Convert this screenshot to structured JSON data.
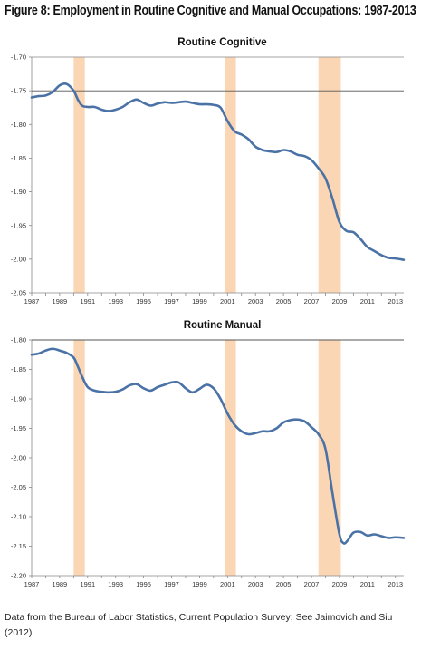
{
  "figure_title": "Figure 8: Employment in Routine Cognitive and Manual Occupations: 1987-2013",
  "caption": "Data from the Bureau of Labor Statistics, Current Population Survey; See Jaimovich and Siu (2012).",
  "colors": {
    "line": "#4a72a6",
    "recession": "#fbd6b4",
    "axis": "#888888",
    "zero_line": "#555555"
  },
  "chart_data": [
    {
      "type": "line",
      "title": "Routine Cognitive",
      "xlim": [
        1987,
        2013.6
      ],
      "ylim": [
        -2.05,
        -1.7
      ],
      "x_ticks": [
        "1987",
        "1989",
        "1991",
        "1993",
        "1995",
        "1997",
        "1999",
        "2001",
        "2003",
        "2005",
        "2007",
        "2009",
        "2011",
        "2013"
      ],
      "y_ticks": [
        "-1.70",
        "-1.75",
        "-1.80",
        "-1.85",
        "-1.90",
        "-1.95",
        "-2.00",
        "-2.05"
      ],
      "reference_line": -1.75,
      "recessions": [
        [
          1990.0,
          1990.8
        ],
        [
          2000.8,
          2001.6
        ],
        [
          2007.5,
          2009.1
        ]
      ],
      "series": [
        {
          "x": [
            1987,
            1987.5,
            1988,
            1988.5,
            1989,
            1989.5,
            1990,
            1990.3,
            1990.6,
            1991,
            1991.5,
            1992,
            1992.5,
            1993,
            1993.5,
            1994,
            1994.5,
            1995,
            1995.5,
            1996,
            1996.5,
            1997,
            1997.5,
            1998,
            1998.5,
            1999,
            1999.5,
            2000,
            2000.5,
            2001,
            2001.5,
            2002,
            2002.5,
            2003,
            2003.5,
            2004,
            2004.5,
            2005,
            2005.5,
            2006,
            2006.5,
            2007,
            2007.5,
            2008,
            2008.5,
            2009,
            2009.5,
            2010,
            2010.5,
            2011,
            2011.5,
            2012,
            2012.5,
            2013,
            2013.6
          ],
          "values": [
            -1.76,
            -1.758,
            -1.757,
            -1.752,
            -1.742,
            -1.74,
            -1.75,
            -1.763,
            -1.772,
            -1.774,
            -1.774,
            -1.778,
            -1.78,
            -1.778,
            -1.774,
            -1.767,
            -1.763,
            -1.768,
            -1.772,
            -1.769,
            -1.767,
            -1.768,
            -1.767,
            -1.766,
            -1.768,
            -1.77,
            -1.77,
            -1.771,
            -1.775,
            -1.795,
            -1.81,
            -1.815,
            -1.822,
            -1.833,
            -1.838,
            -1.84,
            -1.841,
            -1.838,
            -1.84,
            -1.845,
            -1.847,
            -1.853,
            -1.865,
            -1.88,
            -1.91,
            -1.945,
            -1.958,
            -1.96,
            -1.97,
            -1.982,
            -1.988,
            -1.994,
            -1.998,
            -1.999,
            -2.001
          ]
        }
      ]
    },
    {
      "type": "line",
      "title": "Routine Manual",
      "xlim": [
        1987,
        2013.6
      ],
      "ylim": [
        -2.2,
        -1.8
      ],
      "x_ticks": [
        "1987",
        "1989",
        "1991",
        "1993",
        "1995",
        "1997",
        "1999",
        "2001",
        "2003",
        "2005",
        "2007",
        "2009",
        "2011",
        "2013"
      ],
      "y_ticks": [
        "-1.80",
        "-1.85",
        "-1.90",
        "-1.95",
        "-2.00",
        "-2.05",
        "-2.10",
        "-2.15",
        "-2.20"
      ],
      "reference_line": -1.8,
      "recessions": [
        [
          1990.0,
          1990.8
        ],
        [
          2000.8,
          2001.6
        ],
        [
          2007.5,
          2009.1
        ]
      ],
      "series": [
        {
          "x": [
            1987,
            1987.5,
            1988,
            1988.5,
            1989,
            1989.5,
            1990,
            1990.3,
            1990.6,
            1991,
            1991.5,
            1992,
            1992.5,
            1993,
            1993.5,
            1994,
            1994.5,
            1995,
            1995.5,
            1996,
            1996.5,
            1997,
            1997.5,
            1998,
            1998.5,
            1999,
            1999.5,
            2000,
            2000.5,
            2001,
            2001.5,
            2002,
            2002.5,
            2003,
            2003.5,
            2004,
            2004.5,
            2005,
            2005.5,
            2006,
            2006.5,
            2007,
            2007.5,
            2008,
            2008.5,
            2009,
            2009.3,
            2009.6,
            2010,
            2010.5,
            2011,
            2011.5,
            2012,
            2012.5,
            2013,
            2013.6
          ],
          "values": [
            -1.825,
            -1.823,
            -1.818,
            -1.815,
            -1.818,
            -1.822,
            -1.83,
            -1.845,
            -1.862,
            -1.88,
            -1.886,
            -1.888,
            -1.889,
            -1.888,
            -1.884,
            -1.877,
            -1.875,
            -1.882,
            -1.886,
            -1.88,
            -1.876,
            -1.872,
            -1.872,
            -1.882,
            -1.889,
            -1.883,
            -1.876,
            -1.882,
            -1.9,
            -1.925,
            -1.944,
            -1.955,
            -1.96,
            -1.958,
            -1.955,
            -1.955,
            -1.95,
            -1.94,
            -1.936,
            -1.935,
            -1.938,
            -1.948,
            -1.96,
            -1.985,
            -2.06,
            -2.13,
            -2.145,
            -2.14,
            -2.127,
            -2.126,
            -2.132,
            -2.13,
            -2.133,
            -2.136,
            -2.135,
            -2.136
          ]
        }
      ]
    }
  ]
}
